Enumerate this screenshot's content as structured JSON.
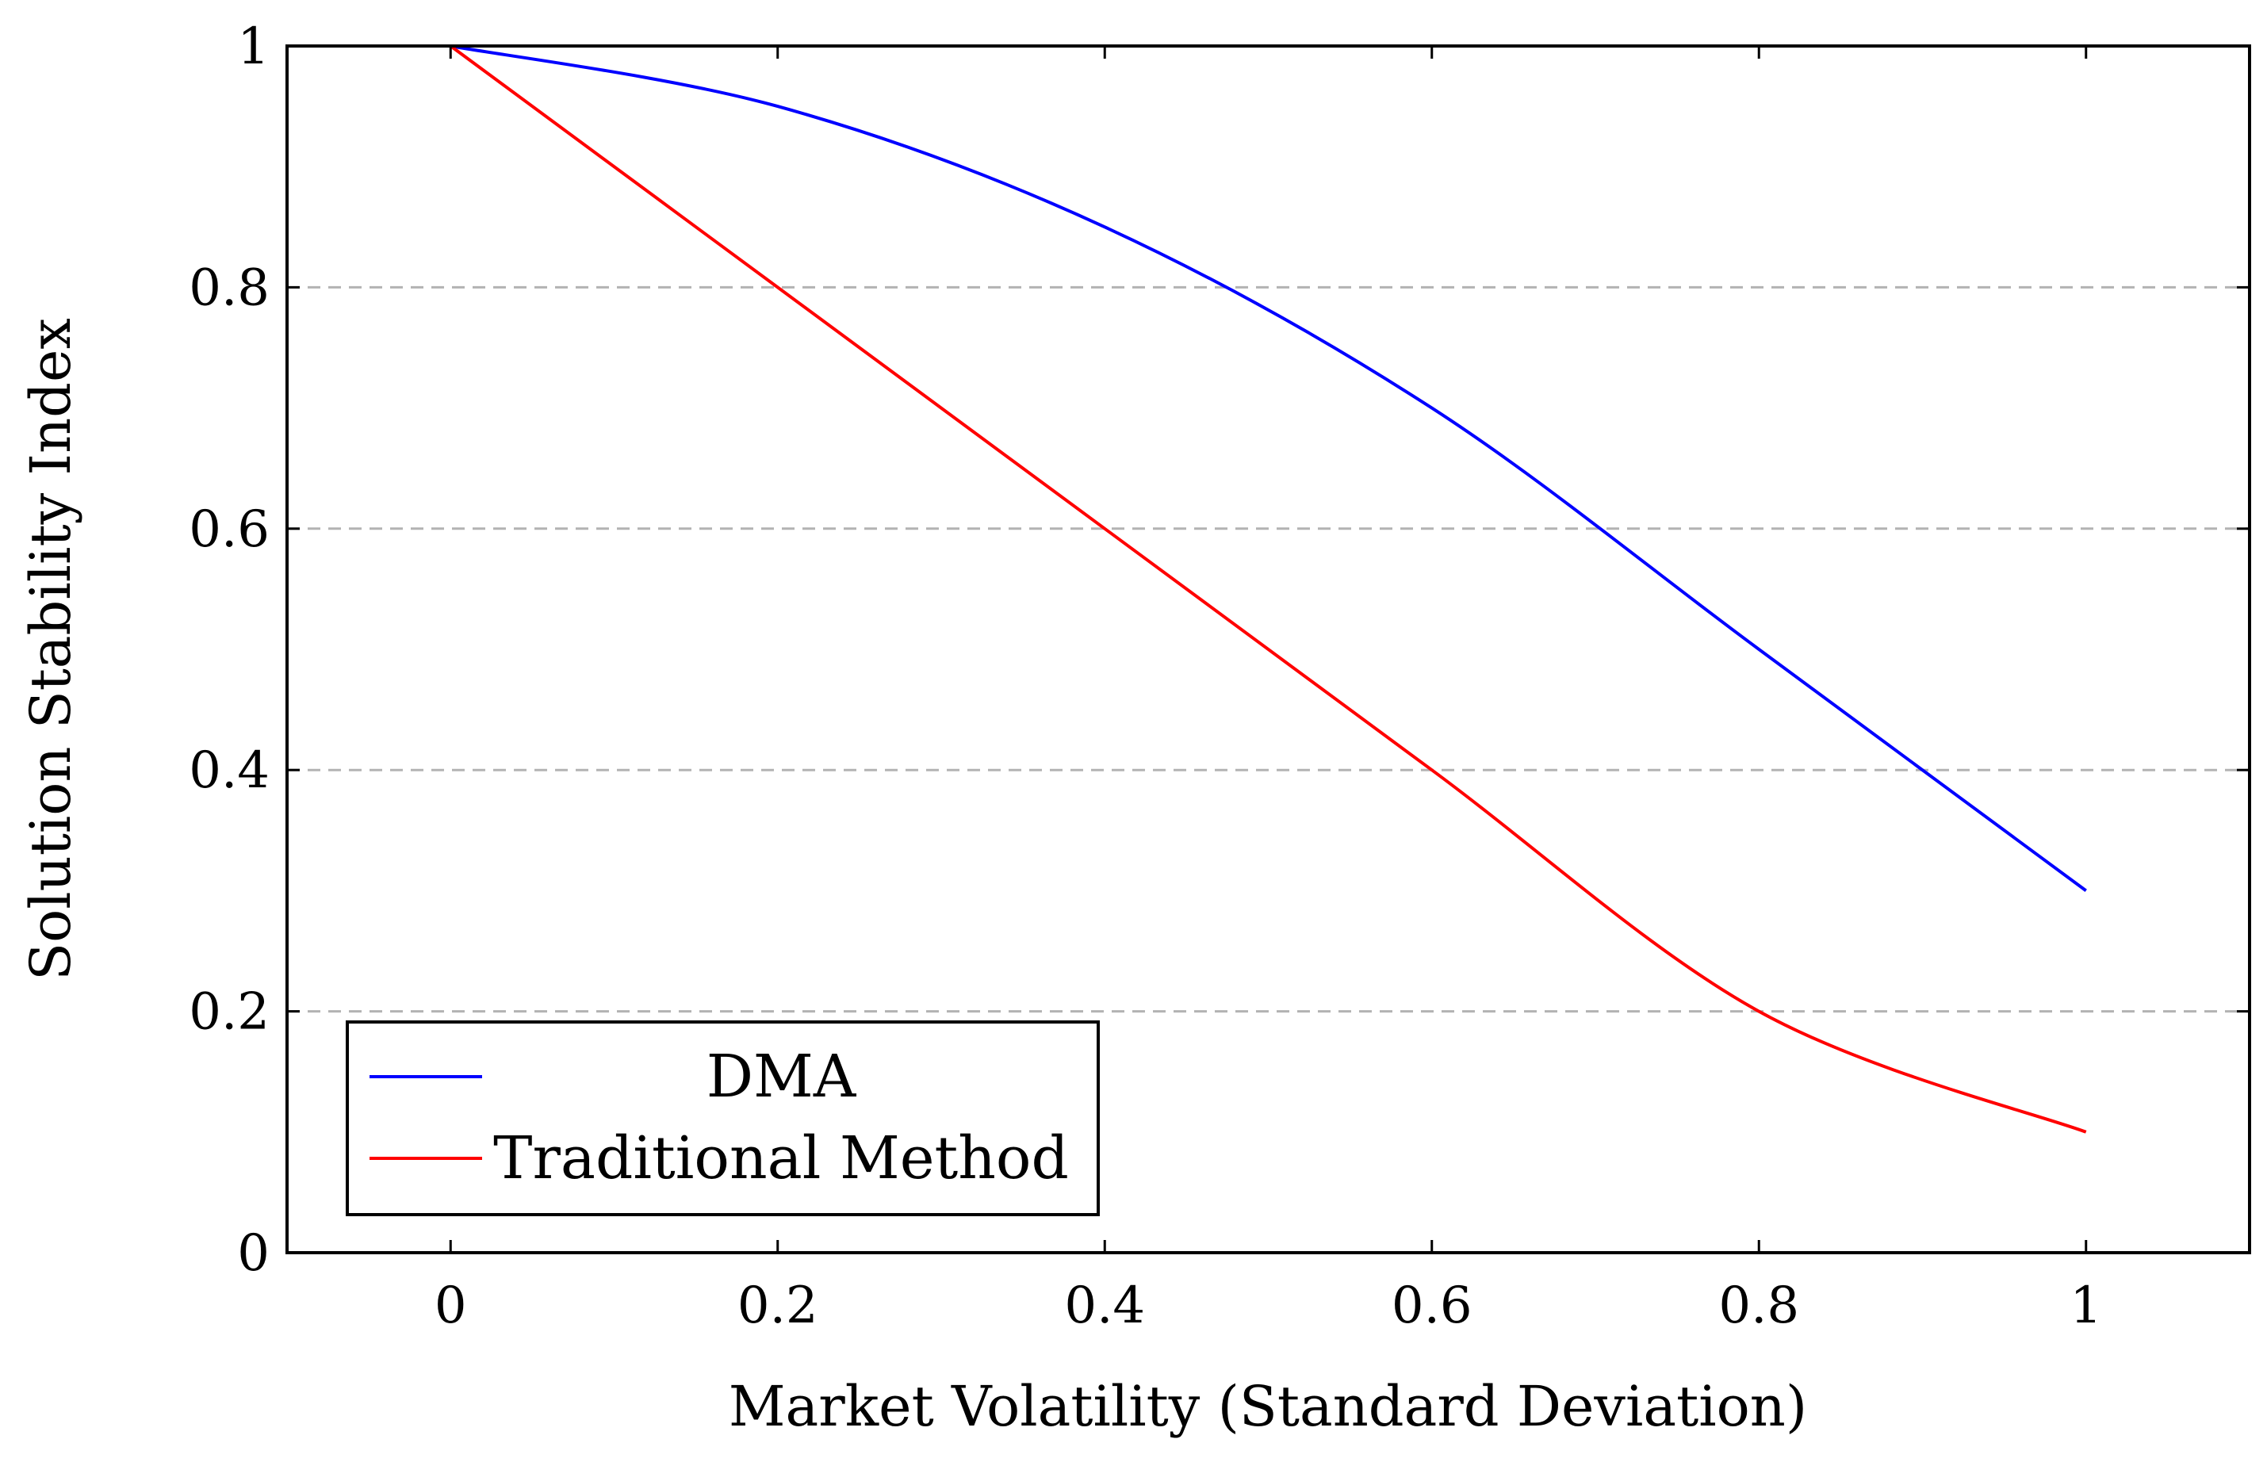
{
  "chart_data": {
    "type": "line",
    "title": "",
    "xlabel": "Market Volatility (Standard Deviation)",
    "ylabel": "Solution Stability Index",
    "xlim": [
      -0.1,
      1.1
    ],
    "ylim": [
      0,
      1
    ],
    "x_ticks": [
      0,
      0.2,
      0.4,
      0.6,
      0.8,
      1
    ],
    "x_tick_labels": [
      "0",
      "0.2",
      "0.4",
      "0.6",
      "0.8",
      "1"
    ],
    "y_ticks": [
      0,
      0.2,
      0.4,
      0.6,
      0.8,
      1
    ],
    "y_tick_labels": [
      "0",
      "0.2",
      "0.4",
      "0.6",
      "0.8",
      "1"
    ],
    "grid": "horizontal-dashed",
    "legend_position": "bottom-left",
    "x": [
      0,
      0.2,
      0.4,
      0.6,
      0.8,
      1
    ],
    "series": [
      {
        "name": "DMA",
        "color": "#0000ff",
        "values": [
          1,
          0.95,
          0.85,
          0.7,
          0.5,
          0.3
        ]
      },
      {
        "name": "Traditional Method",
        "color": "#ff0000",
        "values": [
          1,
          0.8,
          0.6,
          0.4,
          0.2,
          0.1
        ]
      }
    ]
  }
}
